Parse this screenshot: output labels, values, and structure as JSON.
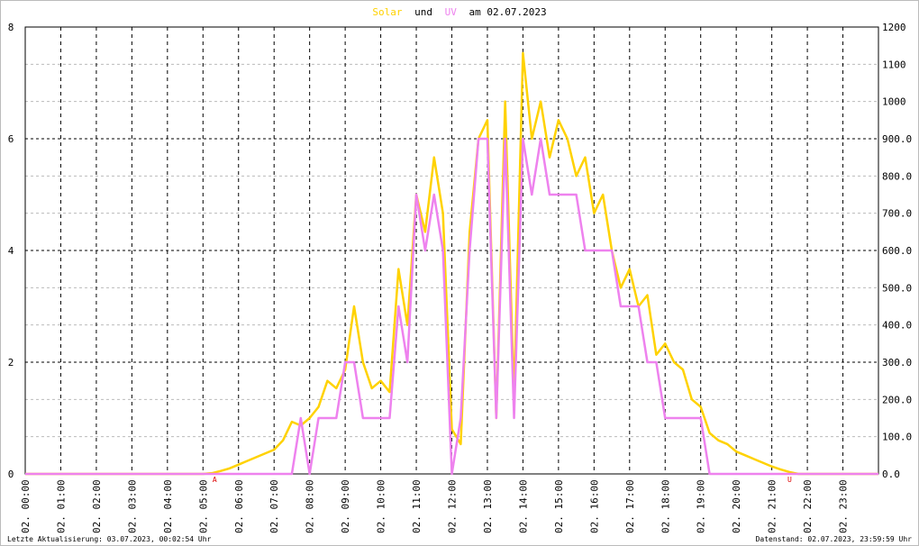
{
  "chart_data": {
    "type": "line",
    "title_parts": [
      "und",
      "am 02.07.2023"
    ],
    "footer_left": "Letzte Aktualisierung: 03.07.2023, 00:02:54 Uhr",
    "footer_right": "Datenstand: 02.07.2023, 23:59:59 Uhr",
    "x": [
      0,
      0.25,
      0.5,
      0.75,
      1,
      1.25,
      1.5,
      1.75,
      2,
      2.25,
      2.5,
      2.75,
      3,
      3.25,
      3.5,
      3.75,
      4,
      4.25,
      4.5,
      4.75,
      5,
      5.25,
      5.5,
      5.75,
      6,
      6.25,
      6.5,
      6.75,
      7,
      7.25,
      7.5,
      7.75,
      8,
      8.25,
      8.5,
      8.75,
      9,
      9.25,
      9.5,
      9.75,
      10,
      10.25,
      10.5,
      10.75,
      11,
      11.25,
      11.5,
      11.75,
      12,
      12.25,
      12.5,
      12.75,
      13,
      13.25,
      13.5,
      13.75,
      14,
      14.25,
      14.5,
      14.75,
      15,
      15.25,
      15.5,
      15.75,
      16,
      16.25,
      16.5,
      16.75,
      17,
      17.25,
      17.5,
      17.75,
      18,
      18.25,
      18.5,
      18.75,
      19,
      19.25,
      19.5,
      19.75,
      20,
      20.25,
      20.5,
      20.75,
      21,
      21.25,
      21.5,
      21.75,
      22,
      22.25,
      22.5,
      22.75,
      23,
      23.25,
      23.5,
      23.75,
      24
    ],
    "series": [
      {
        "name": "Solar",
        "color": "#ffd200",
        "axis": "y2",
        "values": [
          0,
          0,
          0,
          0,
          0,
          0,
          0,
          0,
          0,
          0,
          0,
          0,
          0,
          0,
          0,
          0,
          0,
          0,
          0,
          0,
          0,
          2,
          8,
          15,
          25,
          35,
          45,
          55,
          65,
          90,
          140,
          130,
          150,
          180,
          250,
          230,
          280,
          450,
          300,
          230,
          250,
          220,
          550,
          400,
          750,
          650,
          850,
          700,
          120,
          80,
          650,
          900,
          950,
          150,
          1000,
          200,
          1130,
          900,
          1000,
          850,
          950,
          900,
          800,
          850,
          700,
          750,
          600,
          500,
          550,
          450,
          480,
          320,
          350,
          300,
          280,
          200,
          180,
          110,
          90,
          80,
          60,
          50,
          40,
          30,
          20,
          12,
          5,
          0,
          0,
          0,
          0,
          0,
          0,
          0,
          0,
          0,
          0
        ]
      },
      {
        "name": "UV",
        "color": "#ee82ee",
        "values": [
          0,
          0,
          0,
          0,
          0,
          0,
          0,
          0,
          0,
          0,
          0,
          0,
          0,
          0,
          0,
          0,
          0,
          0,
          0,
          0,
          0,
          0,
          0,
          0,
          0,
          0,
          0,
          0,
          0,
          0,
          0,
          1,
          0,
          1,
          1,
          1,
          2,
          2,
          1,
          1,
          1,
          1,
          3,
          2,
          5,
          4,
          5,
          4,
          0,
          1,
          4,
          6,
          6,
          1,
          6,
          1,
          6,
          5,
          6,
          5,
          5,
          5,
          5,
          4,
          4,
          4,
          4,
          3,
          3,
          3,
          2,
          2,
          1,
          1,
          1,
          1,
          1,
          0,
          0,
          0,
          0,
          0,
          0,
          0,
          0,
          0,
          0,
          0,
          0,
          0,
          0,
          0,
          0,
          0,
          0,
          0,
          0
        ]
      }
    ],
    "annotations": [
      {
        "text": "A",
        "x": 5.33
      },
      {
        "text": "U",
        "x": 21.5
      }
    ],
    "xlim": [
      0,
      24
    ],
    "xticks": [
      {
        "value": 0,
        "label": "02. 00:00"
      },
      {
        "value": 1,
        "label": "02. 01:00"
      },
      {
        "value": 2,
        "label": "02. 02:00"
      },
      {
        "value": 3,
        "label": "02. 03:00"
      },
      {
        "value": 4,
        "label": "02. 04:00"
      },
      {
        "value": 5,
        "label": "02. 05:00"
      },
      {
        "value": 6,
        "label": "02. 06:00"
      },
      {
        "value": 7,
        "label": "02. 07:00"
      },
      {
        "value": 8,
        "label": "02. 08:00"
      },
      {
        "value": 9,
        "label": "02. 09:00"
      },
      {
        "value": 10,
        "label": "02. 10:00"
      },
      {
        "value": 11,
        "label": "02. 11:00"
      },
      {
        "value": 12,
        "label": "02. 12:00"
      },
      {
        "value": 13,
        "label": "02. 13:00"
      },
      {
        "value": 14,
        "label": "02. 14:00"
      },
      {
        "value": 15,
        "label": "02. 15:00"
      },
      {
        "value": 16,
        "label": "02. 16:00"
      },
      {
        "value": 17,
        "label": "02. 17:00"
      },
      {
        "value": 18,
        "label": "02. 18:00"
      },
      {
        "value": 19,
        "label": "02. 19:00"
      },
      {
        "value": 20,
        "label": "02. 20:00"
      },
      {
        "value": 21,
        "label": "02. 21:00"
      },
      {
        "value": 22,
        "label": "02. 22:00"
      },
      {
        "value": 23,
        "label": "02. 23:00"
      }
    ],
    "ylim": [
      0,
      8
    ],
    "yticks": [
      0,
      2,
      4,
      6,
      8
    ],
    "y2lim": [
      0,
      1200
    ],
    "y2ticks": [
      {
        "value": 0,
        "label": "0.0"
      },
      {
        "value": 100,
        "label": "100.0"
      },
      {
        "value": 200,
        "label": "200.0"
      },
      {
        "value": 300,
        "label": "300.0"
      },
      {
        "value": 400,
        "label": "400.0"
      },
      {
        "value": 500,
        "label": "500.0"
      },
      {
        "value": 600,
        "label": "600.0"
      },
      {
        "value": 700,
        "label": "700.0"
      },
      {
        "value": 800,
        "label": "800.0"
      },
      {
        "value": 900,
        "label": "900.0"
      },
      1000,
      1100,
      1200
    ],
    "grid": true
  }
}
